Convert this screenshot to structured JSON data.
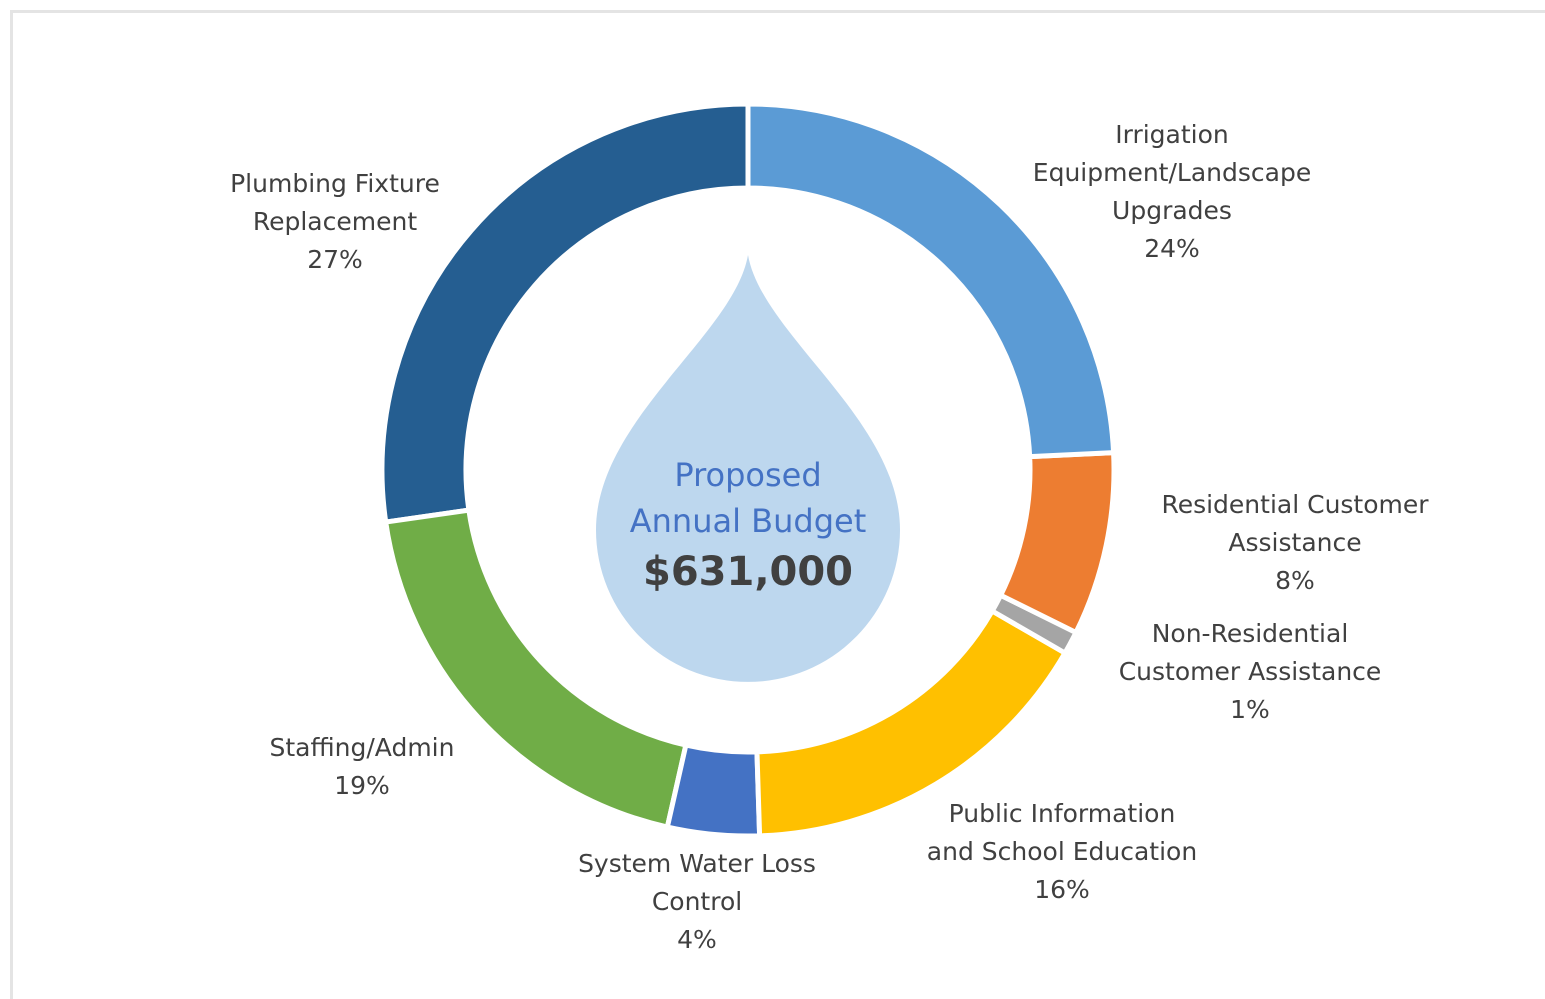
{
  "chart_data": {
    "type": "donut",
    "center_title": "Proposed\nAnnual Budget",
    "center_value_label": "$631,000",
    "categories": [
      "Irrigation\nEquipment/Landscape\nUpgrades",
      "Residential Customer\nAssistance",
      "Non-Residential\nCustomer Assistance",
      "Public Information\nand School Education",
      "System Water Loss\nControl",
      "Staffing/Admin",
      "Plumbing Fixture\nReplacement"
    ],
    "values": [
      24,
      8,
      1,
      16,
      4,
      19,
      27
    ],
    "value_labels": [
      "24%",
      "8%",
      "1%",
      "16%",
      "4%",
      "19%",
      "27%"
    ],
    "colors": [
      "#5b9bd5",
      "#ed7d31",
      "#a5a5a5",
      "#ffc000",
      "#4472c4",
      "#70ad47",
      "#255e91"
    ]
  }
}
